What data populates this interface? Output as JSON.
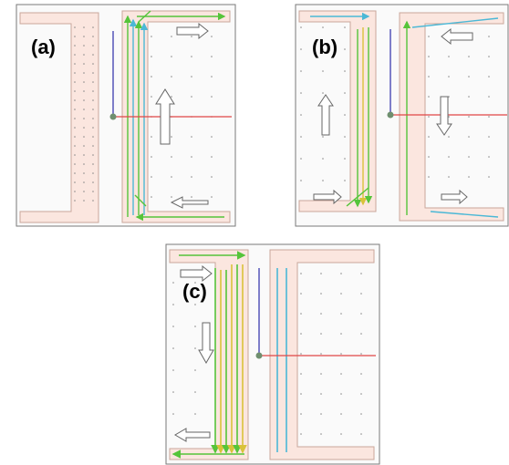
{
  "figure": {
    "panels": [
      {
        "label": "(a)"
      },
      {
        "label": "(b)"
      },
      {
        "label": "(c)"
      }
    ]
  },
  "colors": {
    "frame": "#7a7a7a",
    "panel_bg": "#fafafa",
    "channel_fill": "#fbe6df",
    "channel_stroke": "#c9a79b",
    "dot": "#8a8a8a",
    "vector_green": "#55c43a",
    "vector_cyan": "#4bb8d6",
    "vector_yellow": "#d9c23a",
    "axis_vertical": "#2b2ba8",
    "axis_horizontal": "#e04646",
    "origin": "#6f8f6f"
  }
}
